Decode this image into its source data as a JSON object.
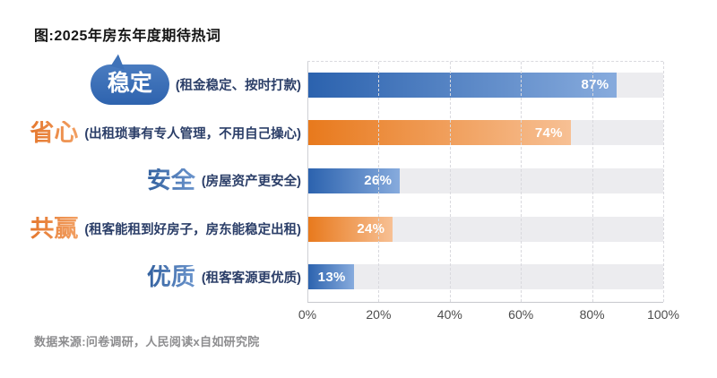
{
  "title": "图:2025年房东年度期待热词",
  "footer": "数据来源:问卷调研，人民阅读x自如研究院",
  "colors": {
    "bar_blue_start": "#2b62ae",
    "bar_blue_end": "#87abdd",
    "bar_orange_start": "#e8791c",
    "bar_orange_end": "#f7c094",
    "track_gray": "#e9e9ee",
    "keyword_blue": "#3d6fb5",
    "keyword_orange": "#ed8a3c",
    "bubble_blue": "#3568b0",
    "description_navy": "#2b3e68",
    "axis_text": "#4d4d4d"
  },
  "chart_data": {
    "type": "bar",
    "orientation": "horizontal",
    "title": "图:2025年房东年度期待热词",
    "categories": [
      "稳定",
      "省心",
      "安全",
      "共赢",
      "优质"
    ],
    "descriptions": [
      "(租金稳定、按时打款)",
      "(出租琐事有专人管理，不用自己操心)",
      "(房屋资产更安全)",
      "(租客能租到好房子，房东能稳定出租)",
      "(租客客源更优质)"
    ],
    "values": [
      87,
      74,
      26,
      24,
      13
    ],
    "value_labels": [
      "87%",
      "74%",
      "26%",
      "24%",
      "13%"
    ],
    "bar_palette": [
      "blue",
      "orange",
      "blue",
      "orange",
      "blue"
    ],
    "category_emphasis": [
      "bubble-blue",
      "text-orange",
      "text-blue",
      "text-orange",
      "text-blue"
    ],
    "xlabel": "",
    "ylabel": "",
    "x_ticks": [
      "0%",
      "20%",
      "40%",
      "60%",
      "80%",
      "100%"
    ],
    "xlim": [
      0,
      100
    ],
    "grid": "vertical-dashed",
    "legend": null,
    "source_note": "数据来源:问卷调研，人民阅读x自如研究院"
  }
}
